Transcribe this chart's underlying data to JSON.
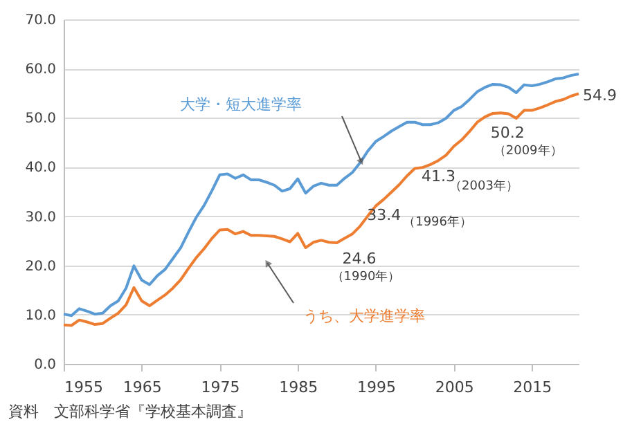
{
  "chart_data": {
    "type": "line",
    "x": [
      1955,
      1956,
      1957,
      1958,
      1959,
      1960,
      1961,
      1962,
      1963,
      1964,
      1965,
      1966,
      1967,
      1968,
      1969,
      1970,
      1971,
      1972,
      1973,
      1974,
      1975,
      1976,
      1977,
      1978,
      1979,
      1980,
      1981,
      1982,
      1983,
      1984,
      1985,
      1986,
      1987,
      1988,
      1989,
      1990,
      1991,
      1992,
      1993,
      1994,
      1995,
      1996,
      1997,
      1998,
      1999,
      2000,
      2001,
      2002,
      2003,
      2004,
      2005,
      2006,
      2007,
      2008,
      2009,
      2010,
      2011,
      2012,
      2013,
      2014,
      2015,
      2016,
      2017,
      2018,
      2019,
      2020,
      2021
    ],
    "series": [
      {
        "name": "大学・短大進学率",
        "color": "#5b9bd5",
        "values": [
          10.1,
          9.8,
          11.2,
          10.7,
          10.1,
          10.3,
          11.8,
          12.8,
          15.4,
          19.9,
          17.0,
          16.1,
          17.9,
          19.2,
          21.4,
          23.6,
          26.8,
          29.8,
          32.2,
          35.2,
          38.4,
          38.6,
          37.7,
          38.4,
          37.4,
          37.4,
          36.9,
          36.3,
          35.1,
          35.6,
          37.6,
          34.7,
          36.1,
          36.7,
          36.3,
          36.3,
          37.7,
          38.9,
          40.9,
          43.3,
          45.2,
          46.2,
          47.3,
          48.2,
          49.1,
          49.1,
          48.6,
          48.6,
          49.0,
          49.9,
          51.5,
          52.3,
          53.7,
          55.3,
          56.2,
          56.8,
          56.7,
          56.2,
          55.1,
          56.7,
          56.5,
          56.8,
          57.3,
          57.9,
          58.1,
          58.6,
          58.9
        ]
      },
      {
        "name": "うち、大学進学率",
        "color": "#ed7d31",
        "values": [
          7.9,
          7.8,
          8.9,
          8.5,
          8.0,
          8.2,
          9.3,
          10.3,
          12.0,
          15.5,
          12.8,
          11.8,
          12.9,
          14.0,
          15.4,
          17.1,
          19.4,
          21.6,
          23.4,
          25.5,
          27.2,
          27.3,
          26.4,
          26.9,
          26.1,
          26.1,
          26.0,
          25.9,
          25.4,
          24.8,
          26.5,
          23.6,
          24.7,
          25.1,
          24.7,
          24.6,
          25.5,
          26.4,
          28.0,
          30.1,
          32.1,
          33.4,
          34.9,
          36.4,
          38.2,
          39.7,
          39.9,
          40.5,
          41.3,
          42.4,
          44.2,
          45.5,
          47.2,
          49.1,
          50.2,
          50.9,
          51.0,
          50.8,
          49.9,
          51.5,
          51.5,
          52.0,
          52.6,
          53.3,
          53.7,
          54.4,
          54.9
        ],
        "value_labels": [
          null,
          null,
          null,
          null,
          null,
          null,
          null,
          null,
          null,
          null,
          null,
          null,
          null,
          null,
          null,
          null,
          null,
          null,
          null,
          null,
          null,
          null,
          null,
          null,
          null,
          null,
          null,
          null,
          null,
          null,
          null,
          null,
          null,
          null,
          null,
          "24.6",
          null,
          null,
          null,
          null,
          null,
          "33.4",
          null,
          null,
          null,
          null,
          null,
          null,
          "41.3",
          null,
          null,
          null,
          null,
          null,
          "50.2",
          null,
          null,
          null,
          null,
          null,
          null,
          null,
          null,
          null,
          null,
          null,
          "54.9"
        ]
      }
    ],
    "xlim": [
      1955,
      2021
    ],
    "xticks": [
      1955,
      1965,
      1975,
      1985,
      1995,
      2005,
      2015
    ],
    "ylim": [
      0,
      70
    ],
    "yticks": [
      {
        "value": 0,
        "label": "0.0"
      },
      {
        "value": 10,
        "label": "10.0"
      },
      {
        "value": 20,
        "label": "20.0"
      },
      {
        "value": 30,
        "label": "30.0"
      },
      {
        "value": 40,
        "label": "40.0"
      },
      {
        "value": 50,
        "label": "50.0"
      },
      {
        "value": 60,
        "label": "60.0"
      },
      {
        "value": 70,
        "label": "70.0"
      }
    ],
    "grid": "y",
    "marker": "none",
    "line_style": "solid",
    "annotations": [
      {
        "text": "（1990年）",
        "x": 1990,
        "y": 24.6
      },
      {
        "text": "（1996年）",
        "x": 1996,
        "y": 33.4
      },
      {
        "text": "（2003年）",
        "x": 2003,
        "y": 41.3
      },
      {
        "text": "（2009年）",
        "x": 2009,
        "y": 50.2
      },
      "資料　文部科学省『学校基本調査』"
    ]
  }
}
